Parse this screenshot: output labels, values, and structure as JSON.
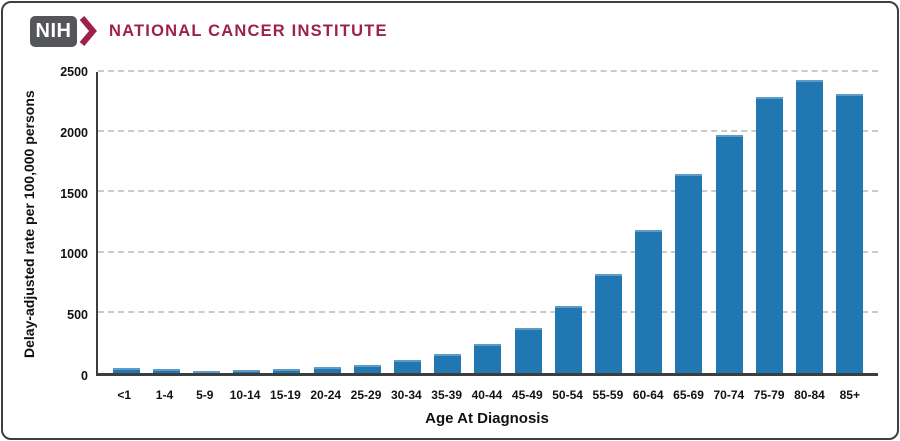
{
  "header": {
    "logo_acronym": "NIH",
    "org_name": "NATIONAL CANCER INSTITUTE",
    "brand_color": "#9d2148",
    "logo_box_color": "#55565b"
  },
  "chart_data": {
    "type": "bar",
    "title": "",
    "categories": [
      "<1",
      "1-4",
      "5-9",
      "10-14",
      "15-19",
      "20-24",
      "25-29",
      "30-34",
      "35-39",
      "40-44",
      "45-49",
      "50-54",
      "55-59",
      "60-64",
      "65-69",
      "70-74",
      "75-79",
      "80-84",
      "85+"
    ],
    "values": [
      38,
      30,
      20,
      22,
      35,
      47,
      65,
      105,
      155,
      240,
      370,
      555,
      820,
      1190,
      1650,
      1975,
      2290,
      2430,
      2320
    ],
    "xlabel": "Age At Diagnosis",
    "ylabel": "Delay-adjusted rate per 100,000 persons",
    "ylim": [
      0,
      2500
    ],
    "yticks": [
      0,
      500,
      1000,
      1500,
      2000,
      2500
    ],
    "grid": "horizontal-dashed",
    "legend": "none",
    "bar_color": "#2177b2",
    "axis_color": "#3d3d3d",
    "gridline_color": "#cbcbcb"
  }
}
